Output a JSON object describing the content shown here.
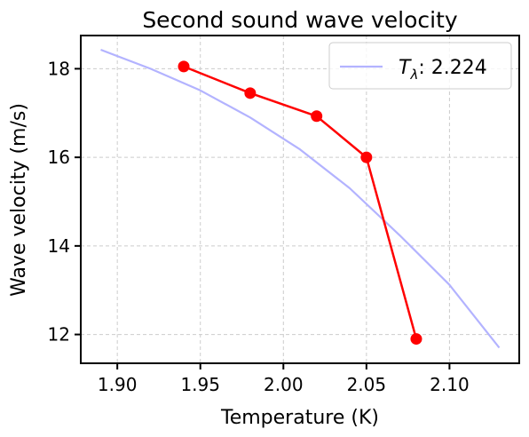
{
  "chart_data": {
    "type": "line",
    "title": "Second sound wave velocity",
    "xlabel": "Temperature (K)",
    "ylabel": "Wave velocity (m/s)",
    "xlim": [
      1.878,
      2.142
    ],
    "ylim": [
      11.35,
      18.75
    ],
    "xticks": [
      1.9,
      1.95,
      2.0,
      2.05,
      2.1
    ],
    "xtick_labels": [
      "1.90",
      "1.95",
      "2.00",
      "2.05",
      "2.10"
    ],
    "yticks": [
      12,
      14,
      16,
      18
    ],
    "ytick_labels": [
      "12",
      "14",
      "16",
      "18"
    ],
    "grid": true,
    "legend_position": "top-right",
    "series": [
      {
        "name": "T_λ: 2.224",
        "legend_symbol": "T",
        "legend_subscript": "λ",
        "legend_value": ": 2.224",
        "color": "#b3b3ff",
        "marker": "none",
        "x": [
          1.89,
          1.92,
          1.95,
          1.98,
          2.01,
          2.04,
          2.07,
          2.1,
          2.13
        ],
        "y": [
          18.43,
          18.0,
          17.51,
          16.9,
          16.18,
          15.3,
          14.24,
          13.12,
          11.7
        ]
      },
      {
        "name": "",
        "color": "#ff0000",
        "marker": "circle",
        "x": [
          1.94,
          1.98,
          2.02,
          2.05,
          2.08
        ],
        "y": [
          18.05,
          17.45,
          16.93,
          16.0,
          11.9
        ]
      }
    ]
  }
}
